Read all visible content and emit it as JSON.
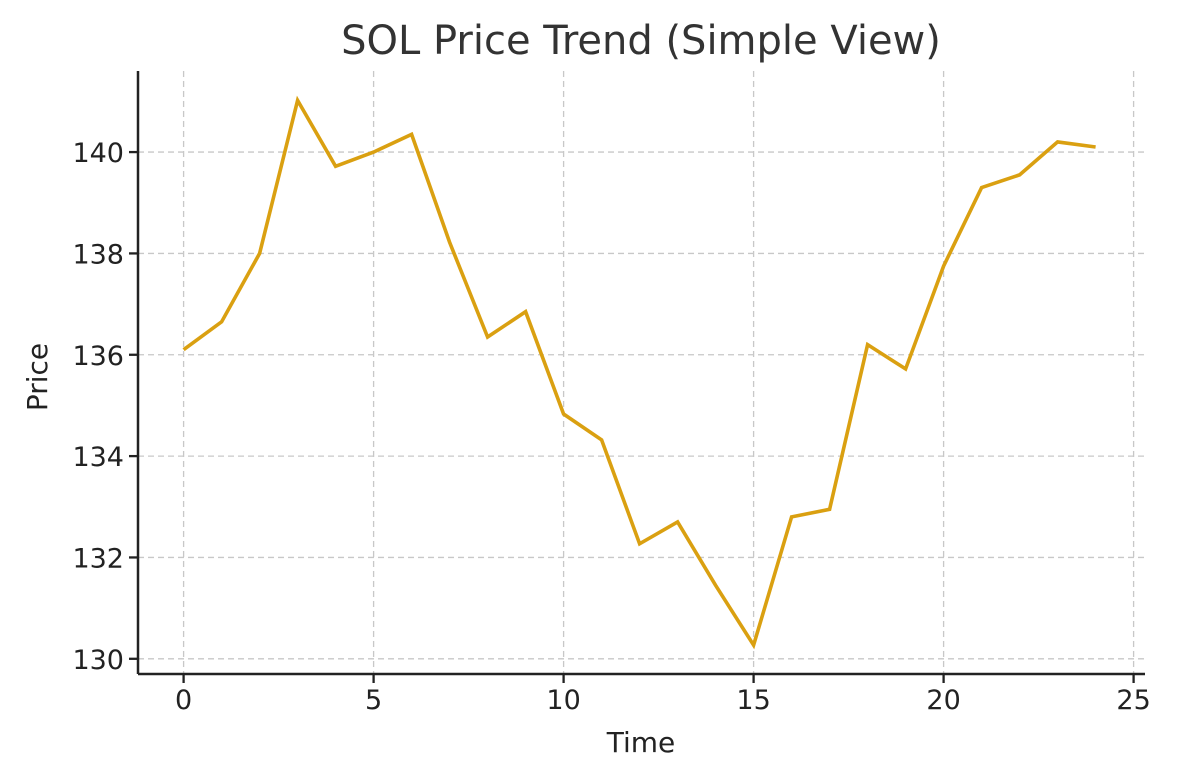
{
  "chart_data": {
    "type": "line",
    "title": "SOL Price Trend (Simple View)",
    "xlabel": "Time",
    "ylabel": "Price",
    "xlim": [
      -1.2,
      25.3
    ],
    "ylim": [
      129.7,
      141.6
    ],
    "xticks": [
      0,
      5,
      10,
      15,
      20,
      25
    ],
    "yticks": [
      130,
      132,
      134,
      136,
      138,
      140
    ],
    "grid": true,
    "legend": "none",
    "series_color": "#DAA011",
    "x": [
      0,
      1,
      2,
      3,
      4,
      5,
      6,
      7,
      8,
      9,
      10,
      11,
      12,
      13,
      14,
      15,
      16,
      17,
      18,
      19,
      20,
      21,
      22,
      23,
      24
    ],
    "series": [
      {
        "values": [
          136.1,
          136.65,
          138.0,
          141.02,
          139.72,
          140.0,
          140.35,
          138.22,
          136.35,
          136.85,
          134.83,
          134.32,
          132.27,
          132.7,
          131.45,
          130.27,
          132.8,
          132.95,
          136.2,
          135.72,
          137.75,
          139.3,
          139.55,
          140.2,
          140.1
        ]
      }
    ]
  }
}
